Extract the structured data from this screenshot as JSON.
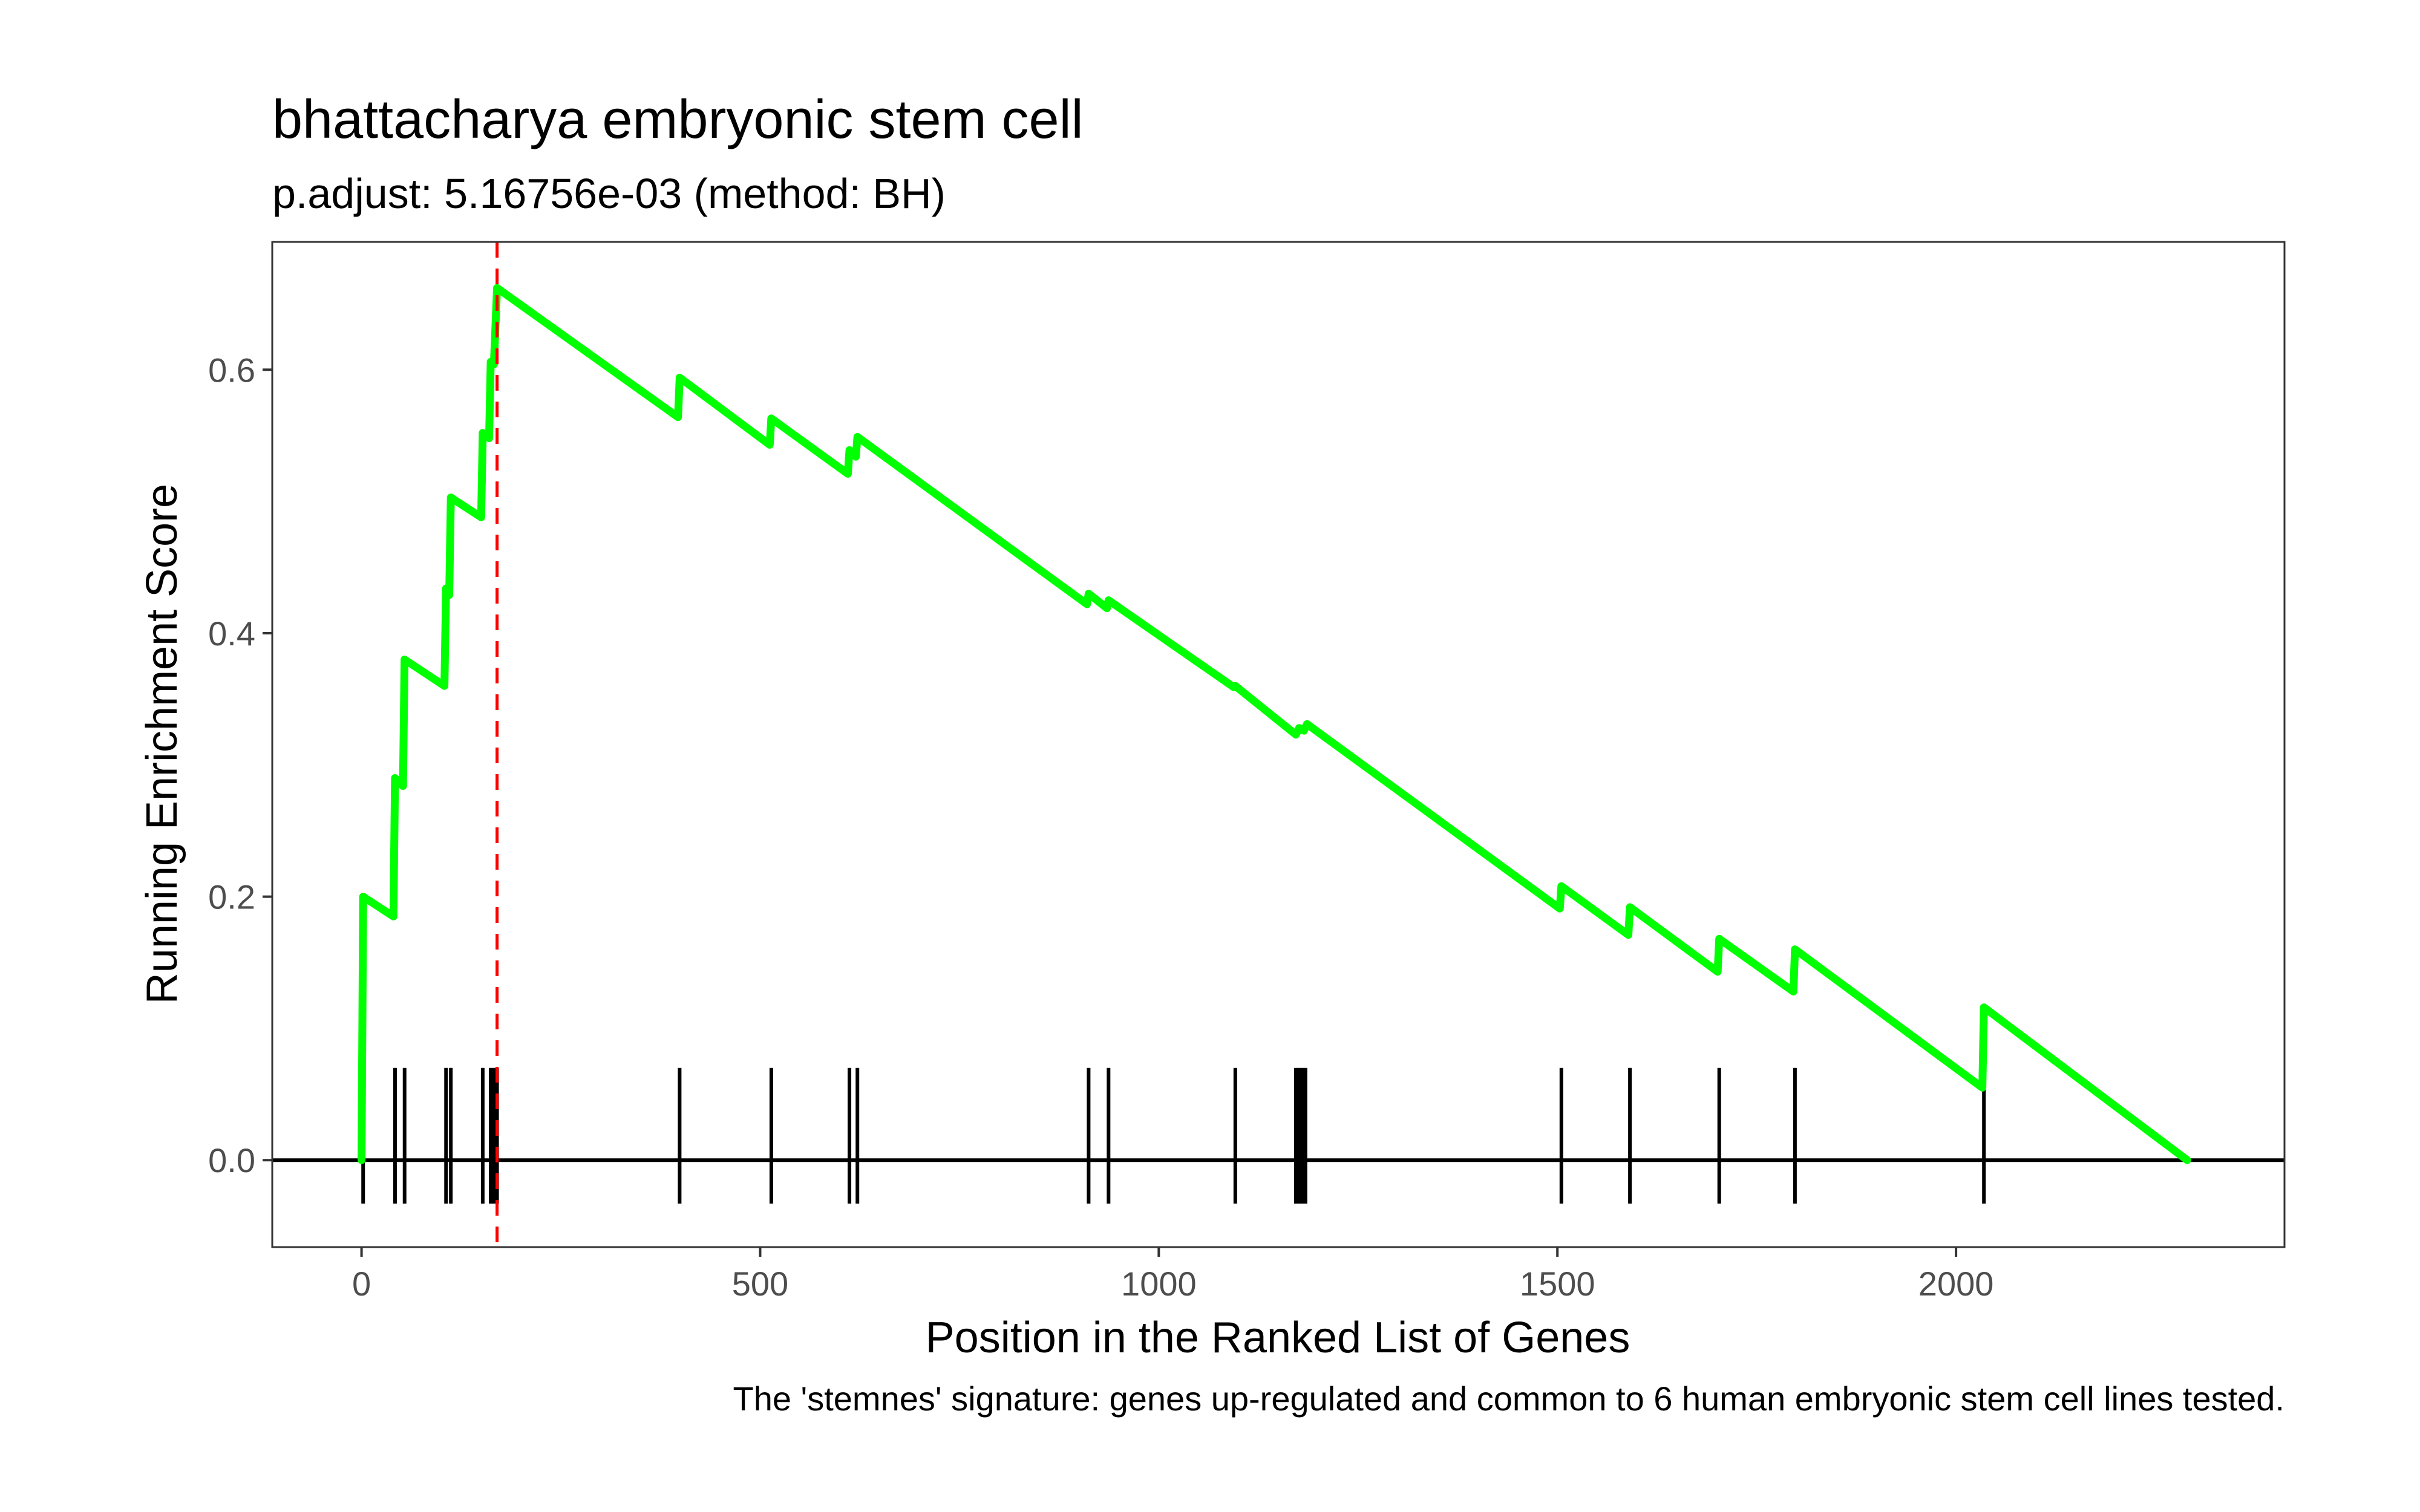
{
  "chart_data": {
    "type": "line",
    "title": "bhattacharya embryonic stem cell",
    "subtitle": "p.adjust: 5.16756e-03 (method: BH)",
    "caption": "The 'stemnes' signature: genes up-regulated and common to 6 human embryonic stem cell lines tested.",
    "xlabel": "Position in the Ranked List of Genes",
    "ylabel": "Running Enrichment Score",
    "xlim": [
      -112,
      2412
    ],
    "ylim": [
      -0.066,
      0.697
    ],
    "x_ticks": [
      0,
      500,
      1000,
      1500,
      2000
    ],
    "x_tick_labels": [
      "0",
      "500",
      "1000",
      "1500",
      "2000"
    ],
    "y_ticks": [
      0.0,
      0.2,
      0.4,
      0.6
    ],
    "y_tick_labels": [
      "0.0",
      "0.2",
      "0.4",
      "0.6"
    ],
    "grid": false,
    "colors": {
      "line": "#00ff00",
      "marker": "#ff0000",
      "rug": "#000000",
      "zero": "#000000",
      "frame": "#333333"
    },
    "peak_position": 170,
    "series": [
      {
        "points": [
          [
            0,
            0.0
          ],
          [
            2,
            0.2
          ],
          [
            40,
            0.185
          ],
          [
            42,
            0.29
          ],
          [
            52,
            0.284
          ],
          [
            54,
            0.38
          ],
          [
            104,
            0.36
          ],
          [
            106,
            0.434
          ],
          [
            110,
            0.429
          ],
          [
            112,
            0.503
          ],
          [
            150,
            0.488
          ],
          [
            152,
            0.552
          ],
          [
            160,
            0.548
          ],
          [
            162,
            0.606
          ],
          [
            166,
            0.604
          ],
          [
            170,
            0.662
          ],
          [
            397,
            0.564
          ],
          [
            399,
            0.594
          ],
          [
            512,
            0.543
          ],
          [
            514,
            0.563
          ],
          [
            610,
            0.521
          ],
          [
            612,
            0.539
          ],
          [
            620,
            0.534
          ],
          [
            622,
            0.549
          ],
          [
            910,
            0.422
          ],
          [
            912,
            0.43
          ],
          [
            935,
            0.419
          ],
          [
            937,
            0.425
          ],
          [
            1094,
            0.359
          ],
          [
            1096,
            0.36
          ],
          [
            1172,
            0.323
          ],
          [
            1176,
            0.328
          ],
          [
            1182,
            0.326
          ],
          [
            1186,
            0.331
          ],
          [
            1503,
            0.191
          ],
          [
            1505,
            0.208
          ],
          [
            1589,
            0.171
          ],
          [
            1591,
            0.192
          ],
          [
            1701,
            0.143
          ],
          [
            1703,
            0.168
          ],
          [
            1796,
            0.128
          ],
          [
            1798,
            0.16
          ],
          [
            2033,
            0.055
          ],
          [
            2035,
            0.116
          ],
          [
            2290,
            0.0
          ]
        ]
      }
    ],
    "hits": [
      2,
      42,
      54,
      106,
      112,
      152,
      162,
      166,
      170,
      399,
      514,
      612,
      622,
      912,
      937,
      1096,
      1172,
      1176,
      1180,
      1184,
      1505,
      1591,
      1703,
      1798,
      2035
    ]
  }
}
